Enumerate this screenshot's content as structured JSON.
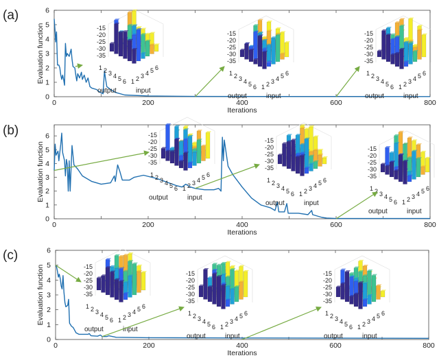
{
  "chart_data": [
    {
      "type": "line",
      "panel_label": "(a)",
      "xlabel": "Iterations",
      "ylabel": "Evaluation function",
      "xlim": [
        0,
        800
      ],
      "ylim": [
        0,
        6
      ],
      "xticks": [
        0,
        200,
        400,
        600,
        800
      ],
      "yticks": [
        0,
        1,
        2,
        3,
        4,
        5,
        6
      ],
      "grid": false,
      "line_color": "#1f6fb0",
      "series": [
        {
          "x": [
            0,
            2,
            3,
            5,
            7,
            10,
            12,
            14,
            16,
            18,
            20,
            22,
            24,
            26,
            28,
            32,
            36,
            38,
            40,
            44,
            46,
            48,
            50,
            54,
            58,
            60,
            64,
            68,
            72,
            76,
            80,
            90,
            98,
            104,
            107,
            109,
            112,
            120,
            130,
            150,
            200,
            300,
            800
          ],
          "y": [
            5.4,
            4.5,
            3.8,
            4.5,
            2.2,
            2.2,
            2.0,
            1.5,
            1.2,
            1.5,
            1.2,
            0.8,
            3.7,
            2.8,
            3.0,
            2.8,
            3.3,
            2.6,
            2.1,
            2.0,
            1.5,
            1.1,
            1.6,
            1.3,
            1.7,
            1.2,
            1.5,
            1.0,
            1.3,
            0.7,
            0.6,
            0.5,
            0.3,
            0.2,
            1.8,
            1.3,
            0.7,
            0.5,
            0.3,
            0.12,
            0.05,
            0.02,
            0.01
          ]
        }
      ],
      "annotations": [
        {
          "from_x": 45,
          "from_y": 2.1
        },
        {
          "from_x": 300,
          "from_y": 0
        },
        {
          "from_x": 600,
          "from_y": 0
        }
      ]
    },
    {
      "type": "line",
      "panel_label": "(b)",
      "xlabel": "Iterations",
      "ylabel": "Evaluation function",
      "xlim": [
        0,
        800
      ],
      "ylim": [
        0,
        6.8
      ],
      "xticks": [
        0,
        200,
        400,
        600,
        800
      ],
      "yticks": [
        0,
        1,
        2,
        3,
        4,
        5,
        6
      ],
      "grid": false,
      "line_color": "#1f6fb0",
      "series": [
        {
          "x": [
            0,
            2,
            4,
            8,
            10,
            14,
            16,
            18,
            22,
            24,
            26,
            28,
            30,
            32,
            34,
            38,
            42,
            50,
            60,
            80,
            100,
            120,
            128,
            130,
            135,
            140,
            145,
            160,
            170,
            190,
            220,
            260,
            272,
            280,
            290,
            300,
            320,
            340,
            350,
            355,
            358,
            360,
            362,
            370,
            380,
            400,
            420,
            440,
            460,
            470,
            475,
            478,
            490,
            495,
            498,
            520,
            540,
            548,
            550,
            560,
            570,
            580,
            600,
            800
          ],
          "y": [
            3.5,
            5.4,
            4.6,
            4.9,
            4.2,
            5.4,
            6.2,
            4.8,
            4.2,
            3.1,
            4.3,
            3.9,
            2.0,
            4.2,
            2.0,
            5.3,
            3.9,
            3.6,
            3.1,
            2.7,
            2.5,
            2.6,
            3.1,
            2.7,
            3.9,
            3.4,
            2.8,
            2.8,
            3.0,
            3.15,
            2.9,
            2.4,
            2.3,
            2.5,
            2.3,
            2.2,
            2.1,
            2.1,
            2.2,
            2.0,
            5.9,
            4.2,
            5.7,
            3.8,
            3.2,
            2.3,
            1.5,
            1.0,
            0.8,
            0.6,
            1.2,
            0.5,
            0.5,
            1.1,
            0.4,
            0.4,
            0.3,
            0.6,
            0.3,
            0.2,
            0.1,
            0.05,
            0.02,
            0.02
          ]
        }
      ],
      "annotations": [
        {
          "from_x": 0,
          "from_y": 3.5
        },
        {
          "from_x": 300,
          "from_y": 2.2
        },
        {
          "from_x": 600,
          "from_y": 0
        }
      ]
    },
    {
      "type": "line",
      "panel_label": "(c)",
      "xlabel": "Iterations",
      "ylabel": "Evaluation function",
      "xlim": [
        0,
        800
      ],
      "ylim": [
        0,
        6
      ],
      "xticks": [
        0,
        200,
        400,
        600,
        800
      ],
      "yticks": [
        0,
        1,
        2,
        3,
        4,
        5,
        6
      ],
      "grid": false,
      "line_color": "#1f6fb0",
      "series": [
        {
          "x": [
            0,
            2,
            4,
            6,
            8,
            10,
            12,
            14,
            16,
            18,
            20,
            22,
            26,
            28,
            30,
            34,
            38,
            44,
            50,
            60,
            70,
            72,
            76,
            90,
            96,
            100,
            110,
            114,
            130,
            200,
            400,
            800
          ],
          "y": [
            5.0,
            4.9,
            4.6,
            4.2,
            4.4,
            4.1,
            3.6,
            3.4,
            4.3,
            3.2,
            2.5,
            2.2,
            2.3,
            2.7,
            1.1,
            0.9,
            0.8,
            0.45,
            0.35,
            0.35,
            0.35,
            0.4,
            0.25,
            0.22,
            0.3,
            0.2,
            0.2,
            0.25,
            0.15,
            0.12,
            0.1,
            0.08
          ]
        }
      ],
      "annotations": [
        {
          "from_x": 0,
          "from_y": 5.0
        },
        {
          "from_x": 100,
          "from_y": 0.2
        },
        {
          "from_x": 400,
          "from_y": 0
        }
      ]
    }
  ],
  "inset": {
    "zticks": [
      "-15",
      "-20",
      "-25",
      "-30",
      "-35"
    ],
    "indices": [
      "1",
      "2",
      "3",
      "4",
      "5",
      "6"
    ],
    "row_axis_label": "output",
    "col_axis_label": "input",
    "column_colors": [
      "#352a87",
      "#2f5ff0",
      "#1fa1d8",
      "#3ec392",
      "#f4b136",
      "#f4ee2a"
    ],
    "arrow_color": "#77ab43"
  }
}
